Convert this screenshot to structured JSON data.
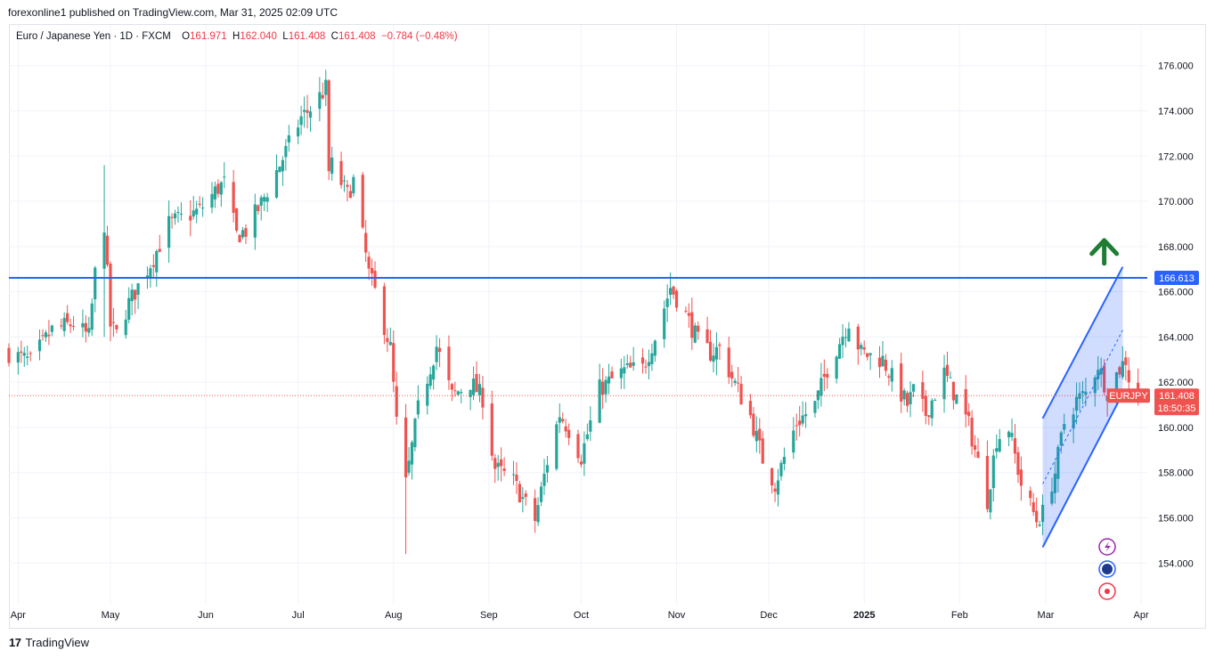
{
  "publisher_line": "forexonline1 published on TradingView.com, Mar 31, 2025 02:09 UTC",
  "legend": {
    "symbol": "Euro / Japanese Yen · 1D · FXCM",
    "open_label": "O",
    "open": "161.971",
    "high_label": "H",
    "high": "162.040",
    "low_label": "L",
    "low": "161.408",
    "close_label": "C",
    "close": "161.408",
    "change": "−0.784 (−0.48%)"
  },
  "price_axis": {
    "ticks": [
      "176.000",
      "174.000",
      "172.000",
      "170.000",
      "168.000",
      "166.000",
      "164.000",
      "162.000",
      "160.000",
      "158.000",
      "156.000",
      "154.000"
    ],
    "hline_label": "166.613",
    "symbol_tag": "EURJPY",
    "last_price": "161.408",
    "countdown": "18:50:35"
  },
  "time_axis": [
    "Apr",
    "May",
    "Jun",
    "Jul",
    "Aug",
    "Sep",
    "Oct",
    "Nov",
    "Dec",
    "2025",
    "Feb",
    "Mar",
    "Apr"
  ],
  "footer": {
    "logo": "17",
    "brand": "TradingView"
  },
  "colors": {
    "up": "#26a69a",
    "down": "#ef5350",
    "hline": "#2962ff",
    "channel": "#2962ff",
    "arrow": "#1e7d32",
    "grid": "#f0f3fa"
  },
  "icons": [
    "lightning-icon",
    "globe-icon",
    "record-icon"
  ],
  "chart_data": {
    "type": "candlestick",
    "title": "Euro / Japanese Yen · 1D · FXCM",
    "ylim": [
      152.2,
      177.8
    ],
    "horizontal_line": 166.613,
    "last_price": 161.408,
    "channel": {
      "lower": [
        [
          "2025-02-28",
          154.7
        ],
        [
          "2025-03-26",
          161.5
        ]
      ],
      "upper": [
        [
          "2025-02-28",
          160.4
        ],
        [
          "2025-03-26",
          167.1
        ]
      ],
      "midline": [
        [
          "2025-02-28",
          157.5
        ],
        [
          "2025-03-26",
          164.3
        ]
      ]
    },
    "up_arrow_at": [
      "2025-03-20",
      167.8
    ],
    "anchors": [
      [
        "2024-03-29",
        163.3
      ],
      [
        "2024-04-05",
        162.9
      ],
      [
        "2024-04-12",
        164.3
      ],
      [
        "2024-04-19",
        164.6
      ],
      [
        "2024-04-24",
        164.0
      ],
      [
        "2024-04-26",
        166.8
      ],
      [
        "2024-04-29",
        169.0
      ],
      [
        "2024-05-01",
        164.5
      ],
      [
        "2024-05-03",
        164.1
      ],
      [
        "2024-05-07",
        165.5
      ],
      [
        "2024-05-15",
        167.5
      ],
      [
        "2024-05-20",
        169.0
      ],
      [
        "2024-05-30",
        169.6
      ],
      [
        "2024-06-05",
        170.6
      ],
      [
        "2024-06-07",
        170.8
      ],
      [
        "2024-06-11",
        168.5
      ],
      [
        "2024-06-14",
        168.7
      ],
      [
        "2024-06-19",
        169.9
      ],
      [
        "2024-06-26",
        171.9
      ],
      [
        "2024-07-02",
        173.7
      ],
      [
        "2024-07-05",
        174.1
      ],
      [
        "2024-07-10",
        175.0
      ],
      [
        "2024-07-11",
        171.3
      ],
      [
        "2024-07-12",
        171.6
      ],
      [
        "2024-07-17",
        170.3
      ],
      [
        "2024-07-19",
        170.9
      ],
      [
        "2024-07-24",
        166.8
      ],
      [
        "2024-07-26",
        166.0
      ],
      [
        "2024-07-31",
        163.5
      ],
      [
        "2024-08-02",
        160.2
      ],
      [
        "2024-08-05",
        157.5
      ],
      [
        "2024-08-09",
        160.8
      ],
      [
        "2024-08-15",
        163.6
      ],
      [
        "2024-08-20",
        161.4
      ],
      [
        "2024-08-26",
        162.0
      ],
      [
        "2024-08-30",
        161.3
      ],
      [
        "2024-09-03",
        158.2
      ],
      [
        "2024-09-09",
        157.6
      ],
      [
        "2024-09-13",
        156.6
      ],
      [
        "2024-09-16",
        155.9
      ],
      [
        "2024-09-20",
        158.5
      ],
      [
        "2024-09-24",
        160.6
      ],
      [
        "2024-09-27",
        159.9
      ],
      [
        "2024-10-01",
        158.7
      ],
      [
        "2024-10-07",
        161.7
      ],
      [
        "2024-10-15",
        162.5
      ],
      [
        "2024-10-21",
        162.6
      ],
      [
        "2024-10-25",
        164.0
      ],
      [
        "2024-10-30",
        166.2
      ],
      [
        "2024-11-04",
        165.0
      ],
      [
        "2024-11-08",
        163.8
      ],
      [
        "2024-11-12",
        163.3
      ],
      [
        "2024-11-15",
        163.5
      ],
      [
        "2024-11-19",
        162.2
      ],
      [
        "2024-11-25",
        160.5
      ],
      [
        "2024-11-29",
        158.6
      ],
      [
        "2024-12-03",
        157.5
      ],
      [
        "2024-12-10",
        160.2
      ],
      [
        "2024-12-16",
        161.0
      ],
      [
        "2024-12-20",
        162.6
      ],
      [
        "2024-12-27",
        164.7
      ],
      [
        "2024-12-31",
        163.3
      ],
      [
        "2025-01-07",
        163.0
      ],
      [
        "2025-01-10",
        162.2
      ],
      [
        "2025-01-15",
        161.0
      ],
      [
        "2025-01-17",
        161.6
      ],
      [
        "2025-01-21",
        160.6
      ],
      [
        "2025-01-27",
        162.4
      ],
      [
        "2025-01-31",
        161.3
      ],
      [
        "2025-02-04",
        160.1
      ],
      [
        "2025-02-10",
        156.8
      ],
      [
        "2025-02-13",
        159.5
      ],
      [
        "2025-02-17",
        160.0
      ],
      [
        "2025-02-21",
        157.5
      ],
      [
        "2025-02-26",
        155.9
      ],
      [
        "2025-02-28",
        156.2
      ],
      [
        "2025-03-04",
        158.0
      ],
      [
        "2025-03-07",
        160.2
      ],
      [
        "2025-03-11",
        161.2
      ],
      [
        "2025-03-14",
        161.5
      ],
      [
        "2025-03-18",
        162.8
      ],
      [
        "2025-03-21",
        161.6
      ],
      [
        "2025-03-25",
        162.6
      ],
      [
        "2025-03-27",
        163.0
      ],
      [
        "2025-03-28",
        162.2
      ],
      [
        "2025-03-31",
        161.408
      ]
    ]
  }
}
